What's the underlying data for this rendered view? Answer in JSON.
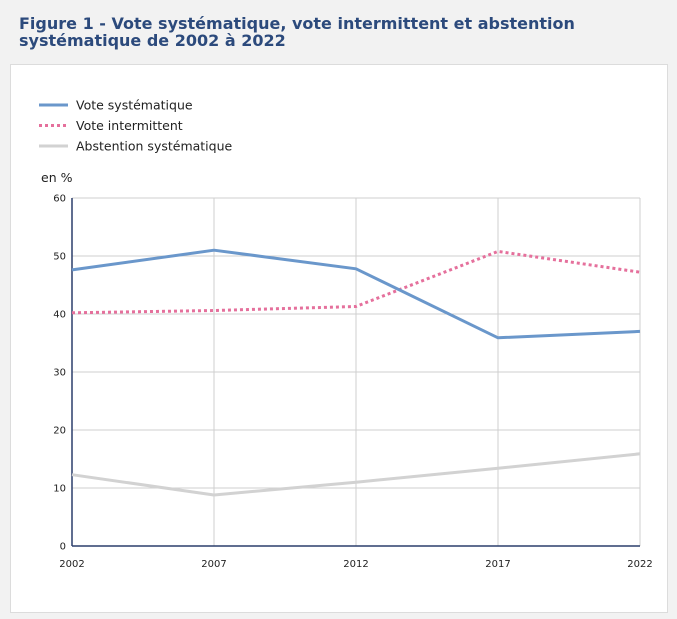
{
  "figure": {
    "title": "Figure 1 - Vote systématique, vote intermittent et abstention systématique de 2002 à 2022"
  },
  "chart_data": {
    "type": "line",
    "x": [
      "2002",
      "2007",
      "2012",
      "2017",
      "2022"
    ],
    "ylabel": "en %",
    "ylim": [
      0,
      60
    ],
    "yticks": [
      "0",
      "10",
      "20",
      "30",
      "40",
      "50",
      "60"
    ],
    "grid": true,
    "legend_position": "top-left",
    "series": [
      {
        "name": "Vote systématique",
        "values": [
          47.6,
          51.0,
          47.8,
          35.9,
          37.0
        ],
        "color": "#6a97cb",
        "style": "solid"
      },
      {
        "name": "Vote intermittent",
        "values": [
          40.2,
          40.6,
          41.3,
          50.8,
          47.2
        ],
        "color": "#e5709c",
        "style": "dotted"
      },
      {
        "name": "Abstention systématique",
        "values": [
          12.3,
          8.8,
          11.0,
          13.4,
          15.9
        ],
        "color": "#d2d2d2",
        "style": "solid"
      }
    ]
  }
}
